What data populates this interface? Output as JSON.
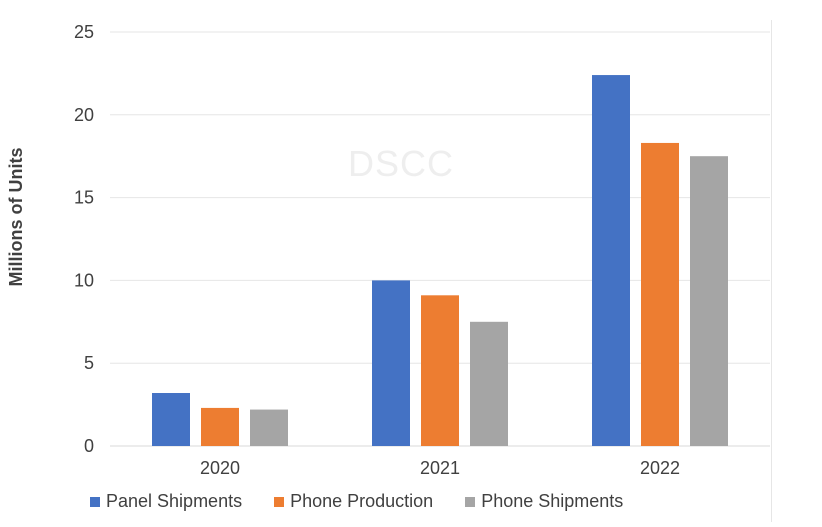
{
  "watermark": "DSCC",
  "chart_data": {
    "type": "bar",
    "categories": [
      "2020",
      "2021",
      "2022"
    ],
    "series": [
      {
        "name": "Panel Shipments",
        "values": [
          3.2,
          10.0,
          22.4
        ],
        "color": "#4472c4"
      },
      {
        "name": "Phone Production",
        "values": [
          2.3,
          9.1,
          18.3
        ],
        "color": "#ed7d31"
      },
      {
        "name": "Phone Shipments",
        "values": [
          2.2,
          7.5,
          17.5
        ],
        "color": "#a5a5a5"
      }
    ],
    "ylabel": "Millions of Units",
    "ylim": [
      0,
      25
    ],
    "yticks": [
      "0",
      "5",
      "10",
      "15",
      "20",
      "25"
    ],
    "grid": true,
    "legend_position": "bottom"
  }
}
